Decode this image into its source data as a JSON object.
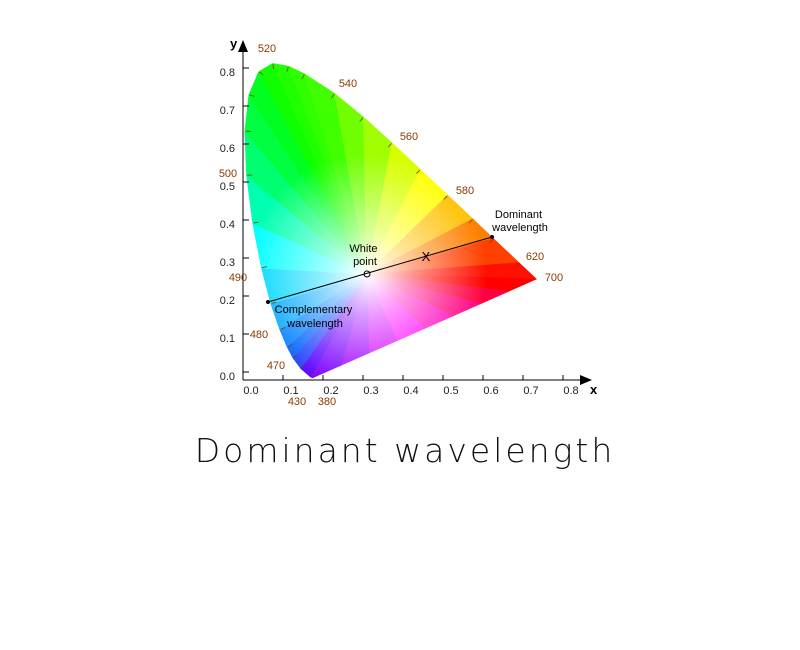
{
  "diagram": {
    "axes": {
      "x_label": "x",
      "y_label": "y",
      "x_ticks": [
        "0.0",
        "0.1",
        "0.2",
        "0.3",
        "0.4",
        "0.5",
        "0.6",
        "0.7",
        "0.8"
      ],
      "y_ticks": [
        "0.0",
        "0.1",
        "0.2",
        "0.3",
        "0.4",
        "0.5",
        "0.6",
        "0.7",
        "0.8"
      ]
    },
    "wavelengths": [
      "520",
      "540",
      "560",
      "580",
      "620",
      "700",
      "500",
      "490",
      "480",
      "470",
      "430",
      "380"
    ],
    "annotations": {
      "dominant": [
        "Dominant",
        "wavelength"
      ],
      "white_point": [
        "White",
        "point"
      ],
      "complementary": [
        "Complementary",
        "wavelength"
      ],
      "marker": "X"
    },
    "caption": "Dominant wavelength"
  }
}
